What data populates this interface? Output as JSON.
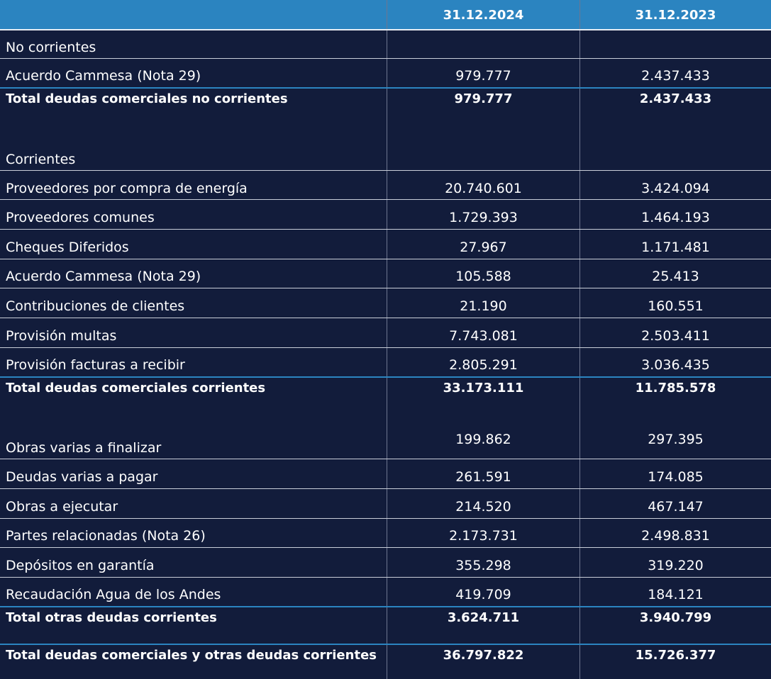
{
  "header": {
    "col1": "31.12.2024",
    "col2": "31.12.2023"
  },
  "rows": [
    {
      "label": "No corrientes",
      "v1": "",
      "v2": ""
    },
    {
      "label": "Acuerdo Cammesa (Nota 29)",
      "v1": "979.777",
      "v2": "2.437.433"
    },
    {
      "label": "Total deudas comerciales no corrientes",
      "v1": "979.777",
      "v2": "2.437.433"
    },
    {
      "label": "Corrientes",
      "v1": "",
      "v2": ""
    },
    {
      "label": "Proveedores por compra de energía",
      "v1": "20.740.601",
      "v2": "3.424.094"
    },
    {
      "label": "Proveedores comunes",
      "v1": "1.729.393",
      "v2": "1.464.193"
    },
    {
      "label": "Cheques Diferidos",
      "v1": "27.967",
      "v2": "1.171.481"
    },
    {
      "label": "Acuerdo Cammesa (Nota 29)",
      "v1": "105.588",
      "v2": "25.413"
    },
    {
      "label": "Contribuciones de clientes",
      "v1": "21.190",
      "v2": "160.551"
    },
    {
      "label": "Provisión multas",
      "v1": "7.743.081",
      "v2": "2.503.411"
    },
    {
      "label": "Provisión facturas a recibir",
      "v1": "2.805.291",
      "v2": "3.036.435"
    },
    {
      "label": "Total deudas comerciales corrientes",
      "v1": "33.173.111",
      "v2": "11.785.578"
    },
    {
      "label": "Obras varias a finalizar",
      "v1": "199.862",
      "v2": "297.395"
    },
    {
      "label": "Deudas varias a pagar",
      "v1": "261.591",
      "v2": "174.085"
    },
    {
      "label": "Obras a ejecutar",
      "v1": "214.520",
      "v2": "467.147"
    },
    {
      "label": "Partes relacionadas (Nota 26)",
      "v1": "2.173.731",
      "v2": "2.498.831"
    },
    {
      "label": "Depósitos en garantía",
      "v1": "355.298",
      "v2": "319.220"
    },
    {
      "label": "Recaudación Agua de los Andes",
      "v1": "419.709",
      "v2": "184.121"
    },
    {
      "label": "Total otras deudas corrientes",
      "v1": "3.624.711",
      "v2": "3.940.799"
    },
    {
      "label": "Total deudas comerciales y otras deudas corrientes",
      "v1": "36.797.822",
      "v2": "15.726.377"
    }
  ],
  "colors": {
    "background": "#121c3b",
    "header": "#2b84c0",
    "text": "#ffffff"
  }
}
